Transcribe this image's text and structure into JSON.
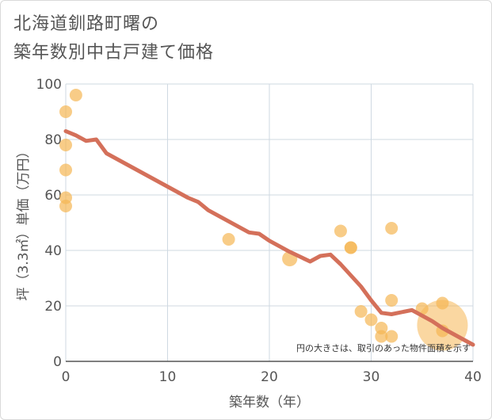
{
  "title_line1": "北海道釧路町曙の",
  "title_line2": "築年数別中古戸建て価格",
  "chart_data": {
    "type": "scatter",
    "title": "北海道釧路町曙の築年数別中古戸建て価格",
    "xlabel": "築年数（年）",
    "ylabel": "坪（3.3㎡）単価（万円）",
    "xlim": [
      0,
      40
    ],
    "ylim": [
      0,
      100
    ],
    "xticks": [
      0,
      10,
      20,
      30,
      40
    ],
    "yticks": [
      0,
      20,
      40,
      60,
      80,
      100
    ],
    "grid": true,
    "note": "円の大きさは、取引のあった物件面積を示す",
    "colors": {
      "points": "#f5b754",
      "trend": "#d4705a",
      "grid": "#cfd9e2",
      "axis": "#555555"
    },
    "points": [
      {
        "x": 0,
        "y": 90,
        "size": 1
      },
      {
        "x": 1,
        "y": 96,
        "size": 1
      },
      {
        "x": 0,
        "y": 78,
        "size": 1
      },
      {
        "x": 0,
        "y": 69,
        "size": 1
      },
      {
        "x": 0,
        "y": 59,
        "size": 1
      },
      {
        "x": 0,
        "y": 56,
        "size": 1
      },
      {
        "x": 16,
        "y": 44,
        "size": 1
      },
      {
        "x": 22,
        "y": 37,
        "size": 1.2
      },
      {
        "x": 27,
        "y": 47,
        "size": 1
      },
      {
        "x": 28,
        "y": 41,
        "size": 1
      },
      {
        "x": 28,
        "y": 41,
        "size": 1
      },
      {
        "x": 32,
        "y": 48,
        "size": 1
      },
      {
        "x": 29,
        "y": 18,
        "size": 1
      },
      {
        "x": 30,
        "y": 15,
        "size": 1
      },
      {
        "x": 31,
        "y": 12,
        "size": 1
      },
      {
        "x": 31,
        "y": 9,
        "size": 1
      },
      {
        "x": 32,
        "y": 22,
        "size": 1
      },
      {
        "x": 32,
        "y": 9,
        "size": 1
      },
      {
        "x": 35,
        "y": 19,
        "size": 1
      },
      {
        "x": 37,
        "y": 21,
        "size": 1
      },
      {
        "x": 37,
        "y": 11,
        "size": 1
      },
      {
        "x": 37,
        "y": 13,
        "size": 4
      }
    ],
    "trend": {
      "name": "trend",
      "x": [
        0,
        1,
        2,
        3,
        4,
        6,
        8,
        10,
        12,
        13,
        14,
        16,
        18,
        19,
        20,
        22,
        24,
        25,
        26,
        27,
        28,
        29,
        30,
        31,
        32,
        34,
        35,
        36,
        37,
        38,
        39,
        40
      ],
      "y": [
        83,
        81.5,
        79.5,
        80,
        75,
        71,
        67,
        63,
        59,
        57.5,
        54.5,
        50.5,
        46.5,
        46,
        43.5,
        39.5,
        36,
        38,
        38.5,
        35,
        31,
        27,
        22,
        17.5,
        17,
        18.5,
        16.5,
        14.5,
        12,
        10,
        8,
        6
      ]
    }
  }
}
